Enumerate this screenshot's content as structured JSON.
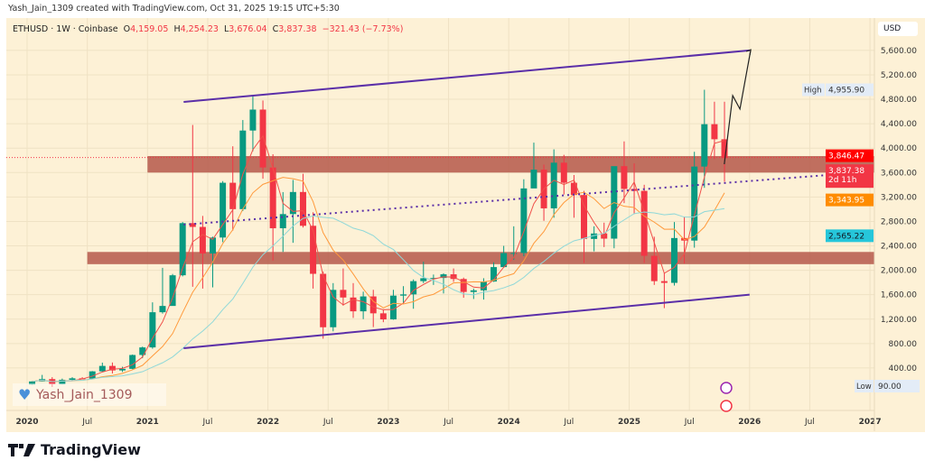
{
  "credit": "Yash_Jain_1309 created with TradingView.com, Oct 31, 2025 19:15 UTC+5:30",
  "legend": {
    "symbol": "ETHUSD · 1W · Coinbase",
    "o_label": "O",
    "o": "4,159.05",
    "h_label": "H",
    "h": "4,254.23",
    "l_label": "L",
    "l": "3,676.04",
    "c_label": "C",
    "c": "3,837.38",
    "change": "−321.43 (−7.73%)"
  },
  "currency": "USD",
  "watermark": "Yash_Jain_1309",
  "brand": "TradingView",
  "price_labels": {
    "high_label": "High",
    "high": "4,955.90",
    "low_label": "Low",
    "low": "90.00",
    "last_red": "3,846.47",
    "close": "3,837.38",
    "countdown": "2d 11h",
    "ma_orange": "3,343.95",
    "ma_teal": "2,565.22"
  },
  "colors": {
    "up": "#089981",
    "down": "#f23645",
    "zone": "#b5584a",
    "channel": "#5b2fa8",
    "ma_fast": "#f0504a",
    "ma_mid": "#ff9a3c",
    "ma_slow": "#8fd8d8",
    "background": "#fdf1d6"
  },
  "chart_data": {
    "type": "candlestick",
    "symbol": "ETHUSD",
    "interval": "1W",
    "exchange": "Coinbase",
    "ylim": [
      0,
      5800
    ],
    "yticks": [
      "400.00",
      "800.00",
      "1,200.00",
      "1,600.00",
      "2,000.00",
      "2,400.00",
      "2,800.00",
      "3,200.00",
      "3,600.00",
      "4,000.00",
      "4,400.00",
      "4,800.00",
      "5,200.00",
      "5,600.00"
    ],
    "xticks": [
      {
        "label": "2020",
        "t": 2020.0
      },
      {
        "label": "Jul",
        "t": 2020.5
      },
      {
        "label": "2021",
        "t": 2021.0
      },
      {
        "label": "Jul",
        "t": 2021.5
      },
      {
        "label": "2022",
        "t": 2022.0
      },
      {
        "label": "Jul",
        "t": 2022.5
      },
      {
        "label": "2023",
        "t": 2023.0
      },
      {
        "label": "Jul",
        "t": 2023.5
      },
      {
        "label": "2024",
        "t": 2024.0
      },
      {
        "label": "Jul",
        "t": 2024.5
      },
      {
        "label": "2025",
        "t": 2025.0
      },
      {
        "label": "Jul",
        "t": 2025.5
      },
      {
        "label": "2026",
        "t": 2026.0
      },
      {
        "label": "Jul",
        "t": 2026.5
      },
      {
        "label": "2027",
        "t": 2027.0
      }
    ],
    "note_sampling": "approximate monthly OHLC read from weekly candles",
    "start": "2020-01",
    "ohlc": [
      [
        130,
        185,
        126,
        180
      ],
      [
        180,
        287,
        215,
        218
      ],
      [
        218,
        250,
        90,
        133
      ],
      [
        133,
        227,
        131,
        206
      ],
      [
        206,
        250,
        190,
        231
      ],
      [
        231,
        250,
        215,
        225
      ],
      [
        225,
        350,
        222,
        345
      ],
      [
        345,
        488,
        340,
        434
      ],
      [
        434,
        490,
        310,
        360
      ],
      [
        360,
        420,
        335,
        386
      ],
      [
        386,
        620,
        380,
        613
      ],
      [
        613,
        750,
        560,
        737
      ],
      [
        737,
        1475,
        715,
        1313
      ],
      [
        1313,
        2040,
        1290,
        1416
      ],
      [
        1416,
        1940,
        1420,
        1918
      ],
      [
        1918,
        2790,
        1900,
        2772
      ],
      [
        2772,
        4380,
        1730,
        2710
      ],
      [
        2710,
        2890,
        1700,
        2275
      ],
      [
        2275,
        2550,
        1720,
        2536
      ],
      [
        2536,
        3460,
        2460,
        3433
      ],
      [
        3433,
        4030,
        2650,
        3001
      ],
      [
        3001,
        4460,
        2970,
        4288
      ],
      [
        4288,
        4870,
        3950,
        4631
      ],
      [
        4631,
        4780,
        3500,
        3683
      ],
      [
        3683,
        3900,
        2160,
        2688
      ],
      [
        2688,
        3280,
        2300,
        2920
      ],
      [
        2920,
        3480,
        2450,
        3282
      ],
      [
        3282,
        3580,
        2700,
        2728
      ],
      [
        2728,
        2950,
        1700,
        1942
      ],
      [
        1942,
        1980,
        880,
        1067
      ],
      [
        1067,
        1790,
        1000,
        1679
      ],
      [
        1679,
        2030,
        1420,
        1554
      ],
      [
        1554,
        1790,
        1220,
        1328
      ],
      [
        1328,
        1650,
        1200,
        1572
      ],
      [
        1572,
        1680,
        1070,
        1295
      ],
      [
        1295,
        1350,
        1150,
        1196
      ],
      [
        1196,
        1680,
        1190,
        1585
      ],
      [
        1585,
        1740,
        1460,
        1605
      ],
      [
        1605,
        1850,
        1370,
        1822
      ],
      [
        1822,
        2140,
        1790,
        1870
      ],
      [
        1870,
        1930,
        1760,
        1874
      ],
      [
        1874,
        1950,
        1620,
        1934
      ],
      [
        1934,
        2030,
        1810,
        1857
      ],
      [
        1857,
        1880,
        1550,
        1645
      ],
      [
        1645,
        1700,
        1530,
        1671
      ],
      [
        1671,
        1870,
        1520,
        1816
      ],
      [
        1816,
        2130,
        1810,
        2052
      ],
      [
        2052,
        2400,
        2040,
        2282
      ],
      [
        2282,
        2720,
        2170,
        2283
      ],
      [
        2283,
        3490,
        2230,
        3340
      ],
      [
        3340,
        4090,
        3350,
        3647
      ],
      [
        3647,
        3730,
        2810,
        3014
      ],
      [
        3014,
        3980,
        2860,
        3762
      ],
      [
        3762,
        3890,
        3240,
        3433
      ],
      [
        3433,
        3560,
        2860,
        3232
      ],
      [
        3232,
        3300,
        2120,
        2513
      ],
      [
        2513,
        2720,
        2310,
        2602
      ],
      [
        2602,
        2780,
        2380,
        2518
      ],
      [
        2518,
        3700,
        2360,
        3705
      ],
      [
        3705,
        4110,
        3100,
        3332
      ],
      [
        3332,
        3750,
        2920,
        3300
      ],
      [
        3300,
        3400,
        2120,
        2237
      ],
      [
        2237,
        2550,
        1760,
        1822
      ],
      [
        1822,
        1960,
        1380,
        1794
      ],
      [
        1794,
        2790,
        1750,
        2528
      ],
      [
        2528,
        2880,
        2110,
        2486
      ],
      [
        2486,
        3940,
        2370,
        3698
      ],
      [
        3698,
        4955.9,
        3350,
        4392
      ],
      [
        4392,
        4760,
        3820,
        4145
      ],
      [
        4145,
        4760,
        3450,
        3837.38
      ]
    ],
    "drawings": {
      "resistance_zone": {
        "from": "2021-01",
        "price": [
          3600,
          3870
        ]
      },
      "support_zone": {
        "from": "2020-07",
        "price": [
          2100,
          2300
        ]
      },
      "channel_upper": [
        {
          "t": 2021.3,
          "p": 4756
        },
        {
          "t": 2026.0,
          "p": 5600
        }
      ],
      "channel_lower": [
        {
          "t": 2021.3,
          "p": 724
        },
        {
          "t": 2026.0,
          "p": 1600
        }
      ],
      "midline_dotted": [
        {
          "t": 2021.3,
          "p": 2747
        },
        {
          "t": 2027.04,
          "p": 3619
        }
      ],
      "projection_path": [
        {
          "t": 2025.79,
          "p": 3737
        },
        {
          "t": 2025.86,
          "p": 4860
        },
        {
          "t": 2025.92,
          "p": 4640
        },
        {
          "t": 2026.01,
          "p": 5613
        }
      ]
    }
  }
}
